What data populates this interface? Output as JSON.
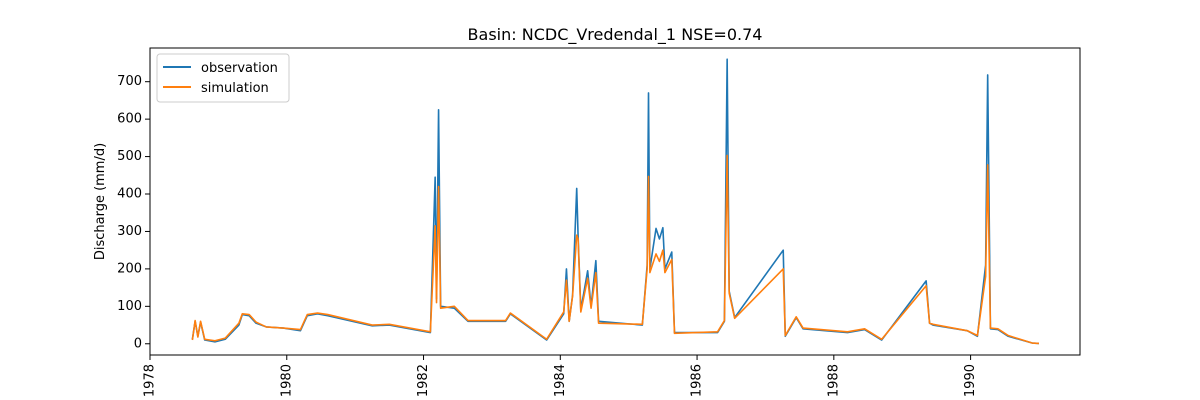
{
  "chart_data": {
    "type": "line",
    "title": "Basin: NCDC_Vredendal_1 NSE=0.74",
    "xlabel": "",
    "ylabel": "Discharge (mm/d)",
    "xlim": [
      1978.0,
      1991.6
    ],
    "ylim": [
      -30,
      790
    ],
    "xticks": [
      1978,
      1980,
      1982,
      1984,
      1986,
      1988,
      1990
    ],
    "yticks": [
      0,
      100,
      200,
      300,
      400,
      500,
      600,
      700
    ],
    "grid": false,
    "legend": "top-left",
    "series": [
      {
        "name": "observation",
        "color": "#1f77b4",
        "points": [
          [
            1978.62,
            12
          ],
          [
            1978.66,
            60
          ],
          [
            1978.7,
            20
          ],
          [
            1978.74,
            58
          ],
          [
            1978.8,
            10
          ],
          [
            1978.95,
            5
          ],
          [
            1979.1,
            12
          ],
          [
            1979.3,
            50
          ],
          [
            1979.35,
            78
          ],
          [
            1979.45,
            75
          ],
          [
            1979.55,
            55
          ],
          [
            1979.7,
            45
          ],
          [
            1979.95,
            42
          ],
          [
            1980.2,
            35
          ],
          [
            1980.3,
            75
          ],
          [
            1980.45,
            80
          ],
          [
            1980.6,
            75
          ],
          [
            1981.25,
            48
          ],
          [
            1981.5,
            50
          ],
          [
            1982.1,
            30
          ],
          [
            1982.17,
            445
          ],
          [
            1982.19,
            120
          ],
          [
            1982.22,
            625
          ],
          [
            1982.25,
            100
          ],
          [
            1982.45,
            95
          ],
          [
            1982.65,
            60
          ],
          [
            1983.2,
            60
          ],
          [
            1983.27,
            80
          ],
          [
            1983.8,
            10
          ],
          [
            1984.05,
            80
          ],
          [
            1984.09,
            200
          ],
          [
            1984.13,
            60
          ],
          [
            1984.18,
            130
          ],
          [
            1984.24,
            415
          ],
          [
            1984.26,
            290
          ],
          [
            1984.3,
            90
          ],
          [
            1984.4,
            195
          ],
          [
            1984.45,
            100
          ],
          [
            1984.52,
            222
          ],
          [
            1984.56,
            60
          ],
          [
            1985.2,
            50
          ],
          [
            1985.27,
            210
          ],
          [
            1985.29,
            670
          ],
          [
            1985.31,
            200
          ],
          [
            1985.4,
            308
          ],
          [
            1985.45,
            280
          ],
          [
            1985.5,
            310
          ],
          [
            1985.53,
            200
          ],
          [
            1985.63,
            245
          ],
          [
            1985.67,
            30
          ],
          [
            1986.3,
            30
          ],
          [
            1986.4,
            60
          ],
          [
            1986.44,
            760
          ],
          [
            1986.47,
            140
          ],
          [
            1986.55,
            70
          ],
          [
            1987.26,
            250
          ],
          [
            1987.29,
            20
          ],
          [
            1987.45,
            70
          ],
          [
            1987.55,
            40
          ],
          [
            1988.2,
            30
          ],
          [
            1988.45,
            38
          ],
          [
            1988.7,
            10
          ],
          [
            1989.35,
            168
          ],
          [
            1989.4,
            55
          ],
          [
            1989.45,
            50
          ],
          [
            1989.95,
            35
          ],
          [
            1990.1,
            20
          ],
          [
            1990.22,
            210
          ],
          [
            1990.25,
            718
          ],
          [
            1990.29,
            40
          ],
          [
            1990.4,
            38
          ],
          [
            1990.55,
            20
          ],
          [
            1990.9,
            2
          ],
          [
            1991.0,
            1
          ]
        ]
      },
      {
        "name": "simulation",
        "color": "#ff7f0e",
        "points": [
          [
            1978.62,
            10
          ],
          [
            1978.66,
            62
          ],
          [
            1978.7,
            18
          ],
          [
            1978.74,
            60
          ],
          [
            1978.8,
            12
          ],
          [
            1978.95,
            8
          ],
          [
            1979.1,
            15
          ],
          [
            1979.3,
            55
          ],
          [
            1979.35,
            80
          ],
          [
            1979.45,
            78
          ],
          [
            1979.55,
            58
          ],
          [
            1979.7,
            45
          ],
          [
            1979.95,
            42
          ],
          [
            1980.2,
            38
          ],
          [
            1980.3,
            78
          ],
          [
            1980.45,
            82
          ],
          [
            1980.6,
            78
          ],
          [
            1981.25,
            50
          ],
          [
            1981.5,
            52
          ],
          [
            1982.1,
            32
          ],
          [
            1982.17,
            315
          ],
          [
            1982.19,
            110
          ],
          [
            1982.22,
            420
          ],
          [
            1982.25,
            95
          ],
          [
            1982.45,
            100
          ],
          [
            1982.65,
            62
          ],
          [
            1983.2,
            62
          ],
          [
            1983.27,
            82
          ],
          [
            1983.8,
            12
          ],
          [
            1984.05,
            85
          ],
          [
            1984.09,
            170
          ],
          [
            1984.13,
            60
          ],
          [
            1984.18,
            128
          ],
          [
            1984.24,
            290
          ],
          [
            1984.26,
            280
          ],
          [
            1984.3,
            85
          ],
          [
            1984.4,
            175
          ],
          [
            1984.45,
            95
          ],
          [
            1984.52,
            190
          ],
          [
            1984.56,
            55
          ],
          [
            1985.2,
            52
          ],
          [
            1985.27,
            200
          ],
          [
            1985.29,
            447
          ],
          [
            1985.31,
            190
          ],
          [
            1985.4,
            240
          ],
          [
            1985.45,
            220
          ],
          [
            1985.5,
            250
          ],
          [
            1985.53,
            190
          ],
          [
            1985.63,
            225
          ],
          [
            1985.67,
            28
          ],
          [
            1986.3,
            32
          ],
          [
            1986.4,
            62
          ],
          [
            1986.44,
            503
          ],
          [
            1986.47,
            135
          ],
          [
            1986.55,
            68
          ],
          [
            1987.26,
            200
          ],
          [
            1987.29,
            22
          ],
          [
            1987.45,
            72
          ],
          [
            1987.55,
            42
          ],
          [
            1988.2,
            32
          ],
          [
            1988.45,
            40
          ],
          [
            1988.7,
            12
          ],
          [
            1989.35,
            155
          ],
          [
            1989.4,
            55
          ],
          [
            1989.45,
            52
          ],
          [
            1989.95,
            35
          ],
          [
            1990.1,
            22
          ],
          [
            1990.22,
            180
          ],
          [
            1990.25,
            478
          ],
          [
            1990.29,
            42
          ],
          [
            1990.4,
            40
          ],
          [
            1990.55,
            22
          ],
          [
            1990.9,
            2
          ],
          [
            1991.0,
            1
          ]
        ]
      }
    ]
  }
}
